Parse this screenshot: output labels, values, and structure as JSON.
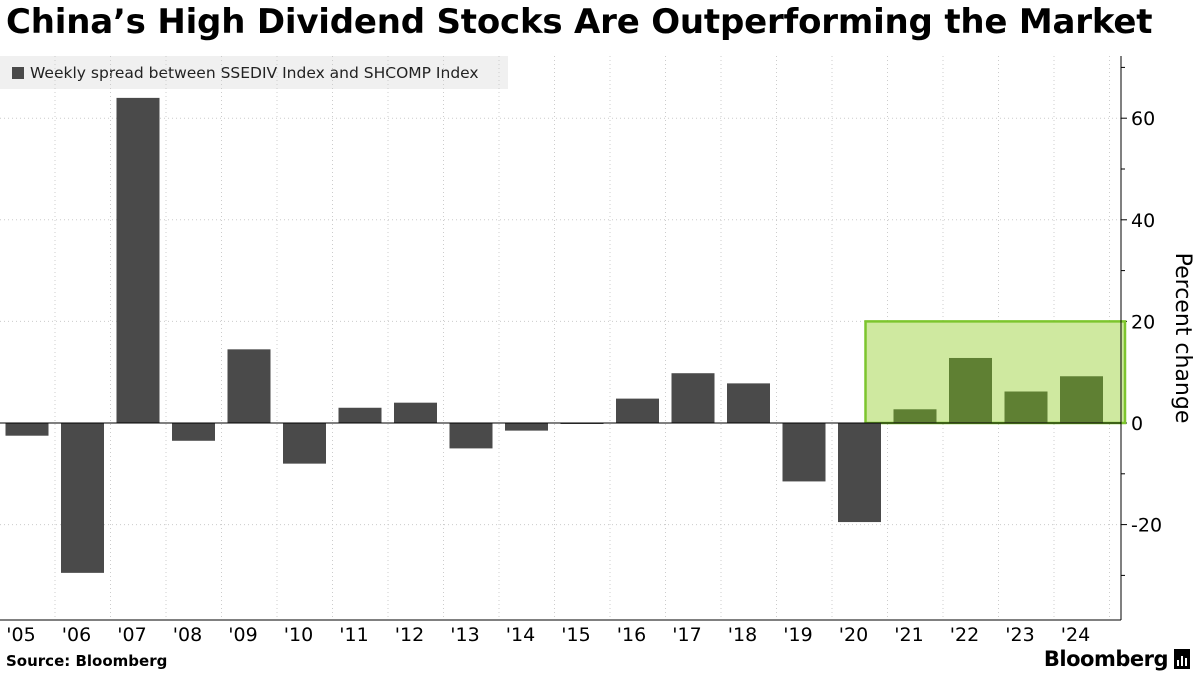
{
  "title": "China’s High Dividend Stocks Are Outperforming the Market",
  "legend": {
    "label": "Weekly spread between SSEDIV Index and SHCOMP Index",
    "color": "#4a4a4a"
  },
  "footer": {
    "source": "Source: Bloomberg",
    "brand": "Bloomberg",
    "brand_icon": "bar-chart-icon"
  },
  "colors": {
    "bar": "#4a4a4a",
    "highlight_bar": "#5f8033",
    "highlight_fill": "#cfe9a0",
    "highlight_stroke": "#7dc52e",
    "axis": "#000000",
    "grid": "#cccccc"
  },
  "chart_data": {
    "type": "bar",
    "title": "China’s High Dividend Stocks Are Outperforming the Market",
    "categories": [
      "'05",
      "'06",
      "'07",
      "'08",
      "'09",
      "'10",
      "'11",
      "'12",
      "'13",
      "'14",
      "'15",
      "'16",
      "'17",
      "'18",
      "'19",
      "'20",
      "'21",
      "'22",
      "'23",
      "'24"
    ],
    "values": [
      -2.5,
      -29.5,
      64,
      -3.5,
      14.5,
      -8,
      3,
      4,
      -5,
      -1.5,
      0,
      4.8,
      9.8,
      7.8,
      -11.5,
      -19.5,
      2.7,
      12.8,
      6.2,
      9.2
    ],
    "series": [
      {
        "name": "Weekly spread between SSEDIV Index and SHCOMP Index",
        "values": [
          -2.5,
          -29.5,
          64,
          -3.5,
          14.5,
          -8,
          3,
          4,
          -5,
          -1.5,
          0,
          4.8,
          9.8,
          7.8,
          -11.5,
          -19.5,
          2.7,
          12.8,
          6.2,
          9.2
        ]
      }
    ],
    "highlight": {
      "from_index": 16,
      "to_index": 19,
      "ymin": 0,
      "ymax": 20
    },
    "xlabel": "",
    "ylabel": "Percent change",
    "ylim": [
      -38,
      72
    ],
    "yticks": [
      -20,
      0,
      20,
      40,
      60
    ],
    "ytick_labels": [
      "-20",
      "0",
      "20",
      "40",
      "60"
    ],
    "y_axis_position": "right",
    "grid": true
  }
}
